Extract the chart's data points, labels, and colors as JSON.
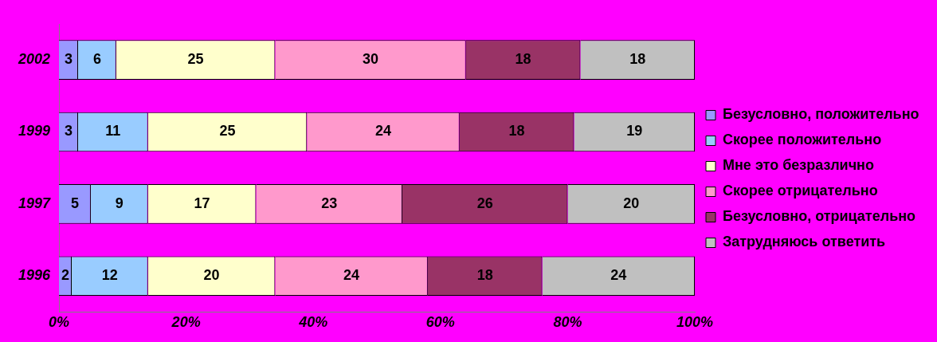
{
  "chart_data": {
    "type": "bar",
    "orientation": "horizontal",
    "stacked": true,
    "data_labels": true,
    "legend": "right",
    "grid": false,
    "categories": [
      "2002",
      "1999",
      "1997",
      "1996"
    ],
    "series": [
      {
        "name": "Безусловно, положительно",
        "color": "#9999ff",
        "values": [
          3,
          3,
          5,
          2
        ]
      },
      {
        "name": "Скорее положительно",
        "color": "#99ccff",
        "values": [
          6,
          11,
          9,
          12
        ]
      },
      {
        "name": "Мне это безразлично",
        "color": "#ffffcc",
        "values": [
          25,
          25,
          17,
          20
        ]
      },
      {
        "name": "Скорее отрицательно",
        "color": "#ff99cc",
        "values": [
          30,
          24,
          23,
          24
        ]
      },
      {
        "name": "Безусловно, отрицательно",
        "color": "#993366",
        "values": [
          18,
          18,
          26,
          18
        ]
      },
      {
        "name": "Затрудняюсь ответить",
        "color": "#c0c0c0",
        "values": [
          18,
          19,
          20,
          24
        ]
      }
    ],
    "xlim": [
      0,
      100
    ],
    "xticks": [
      {
        "value": 0,
        "label": "0%"
      },
      {
        "value": 20,
        "label": "20%"
      },
      {
        "value": 40,
        "label": "40%"
      },
      {
        "value": 60,
        "label": "60%"
      },
      {
        "value": 80,
        "label": "80%"
      },
      {
        "value": 100,
        "label": "100%"
      }
    ]
  }
}
